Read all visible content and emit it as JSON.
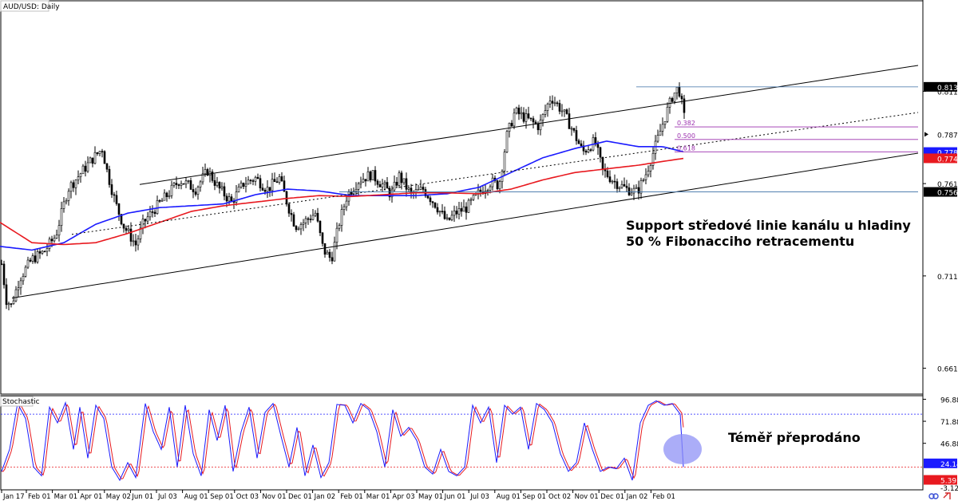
{
  "chart_data": {
    "type": "candlestick",
    "title": "AUD/USD: Daily",
    "x_tick_labels": [
      "Jan 17",
      "Feb 01",
      "Mar 01",
      "Apr 01",
      "May 02",
      "Jun 01",
      "Jul 03",
      "Aug 01",
      "Sep 01",
      "Oct 03",
      "Nov 01",
      "Dec 01",
      "Jan 02",
      "Feb 01",
      "Mar 01",
      "Apr 03",
      "May 01",
      "Jun 01",
      "Jul 03",
      "Aug 01",
      "Sep 01",
      "Oct 02",
      "Nov 01",
      "Dec 01",
      "Jan 02",
      "Feb 01"
    ],
    "price_axis": {
      "ylim": [
        0.647,
        0.86
      ],
      "tick_labels": [
        "0.8110",
        "0.7610",
        "0.7110",
        "0.6610"
      ],
      "tick_values": [
        0.811,
        0.761,
        0.711,
        0.661
      ],
      "current_labels": [
        {
          "value": 0.8134,
          "text": "0.8134",
          "color": "#000000"
        },
        {
          "value": 0.7877,
          "text": "0.7877",
          "color": "#ffffff"
        },
        {
          "value": 0.7781,
          "text": "0.7781",
          "color": "#1a1aff"
        },
        {
          "value": 0.7747,
          "text": "0.7747",
          "color": "#e8191f"
        },
        {
          "value": 0.7565,
          "text": "0.7565",
          "color": "#000000"
        }
      ]
    },
    "series": [
      {
        "name": "",
        "type": "candlestick",
        "approx_points": [
          [
            0,
            0.724
          ],
          [
            8,
            0.698
          ],
          [
            14,
            0.695
          ],
          [
            25,
            0.71
          ],
          [
            40,
            0.72
          ],
          [
            55,
            0.724
          ],
          [
            70,
            0.733
          ],
          [
            85,
            0.758
          ],
          [
            100,
            0.766
          ],
          [
            115,
            0.774
          ],
          [
            128,
            0.78
          ],
          [
            135,
            0.766
          ],
          [
            145,
            0.75
          ],
          [
            155,
            0.738
          ],
          [
            170,
            0.728
          ],
          [
            180,
            0.74
          ],
          [
            195,
            0.748
          ],
          [
            210,
            0.755
          ],
          [
            225,
            0.763
          ],
          [
            245,
            0.758
          ],
          [
            260,
            0.768
          ],
          [
            275,
            0.758
          ],
          [
            290,
            0.751
          ],
          [
            305,
            0.761
          ],
          [
            320,
            0.764
          ],
          [
            335,
            0.758
          ],
          [
            350,
            0.764
          ],
          [
            360,
            0.75
          ],
          [
            370,
            0.738
          ],
          [
            380,
            0.74
          ],
          [
            395,
            0.745
          ],
          [
            405,
            0.725
          ],
          [
            415,
            0.72
          ],
          [
            425,
            0.74
          ],
          [
            435,
            0.755
          ],
          [
            450,
            0.763
          ],
          [
            465,
            0.766
          ],
          [
            480,
            0.76
          ],
          [
            490,
            0.755
          ],
          [
            500,
            0.765
          ],
          [
            515,
            0.755
          ],
          [
            530,
            0.758
          ],
          [
            545,
            0.75
          ],
          [
            560,
            0.74
          ],
          [
            570,
            0.745
          ],
          [
            585,
            0.748
          ],
          [
            600,
            0.756
          ],
          [
            615,
            0.762
          ],
          [
            625,
            0.76
          ],
          [
            635,
            0.787
          ],
          [
            645,
            0.8
          ],
          [
            660,
            0.796
          ],
          [
            675,
            0.792
          ],
          [
            690,
            0.808
          ],
          [
            705,
            0.8
          ],
          [
            715,
            0.792
          ],
          [
            730,
            0.778
          ],
          [
            745,
            0.784
          ],
          [
            755,
            0.768
          ],
          [
            770,
            0.762
          ],
          [
            785,
            0.758
          ],
          [
            798,
            0.7565
          ],
          [
            808,
            0.765
          ],
          [
            820,
            0.78
          ],
          [
            832,
            0.796
          ],
          [
            842,
            0.808
          ],
          [
            850,
            0.8134
          ],
          [
            857,
            0.797
          ]
        ]
      },
      {
        "name": "",
        "type": "moving-average",
        "color": "#1a1aff",
        "approx_points": [
          [
            0,
            0.727
          ],
          [
            40,
            0.725
          ],
          [
            80,
            0.729
          ],
          [
            120,
            0.739
          ],
          [
            160,
            0.745
          ],
          [
            200,
            0.748
          ],
          [
            240,
            0.749
          ],
          [
            280,
            0.75
          ],
          [
            320,
            0.755
          ],
          [
            360,
            0.758
          ],
          [
            400,
            0.757
          ],
          [
            440,
            0.7545
          ],
          [
            480,
            0.7545
          ],
          [
            520,
            0.7545
          ],
          [
            560,
            0.7555
          ],
          [
            600,
            0.759
          ],
          [
            640,
            0.767
          ],
          [
            680,
            0.775
          ],
          [
            720,
            0.78
          ],
          [
            760,
            0.784
          ],
          [
            800,
            0.781
          ],
          [
            830,
            0.781
          ],
          [
            857,
            0.7781
          ]
        ]
      },
      {
        "name": "",
        "type": "moving-average",
        "color": "#e8191f",
        "approx_points": [
          [
            0,
            0.74
          ],
          [
            40,
            0.729
          ],
          [
            80,
            0.728
          ],
          [
            120,
            0.729
          ],
          [
            160,
            0.734
          ],
          [
            200,
            0.74
          ],
          [
            240,
            0.746
          ],
          [
            280,
            0.749
          ],
          [
            320,
            0.751
          ],
          [
            360,
            0.753
          ],
          [
            400,
            0.7545
          ],
          [
            440,
            0.754
          ],
          [
            480,
            0.755
          ],
          [
            520,
            0.756
          ],
          [
            560,
            0.756
          ],
          [
            600,
            0.7555
          ],
          [
            640,
            0.758
          ],
          [
            680,
            0.763
          ],
          [
            720,
            0.767
          ],
          [
            760,
            0.769
          ],
          [
            800,
            0.771
          ],
          [
            830,
            0.773
          ],
          [
            857,
            0.7747
          ]
        ]
      }
    ],
    "channel": {
      "upper": [
        [
          175,
          0.7605
        ],
        [
          1150,
          0.825
        ]
      ],
      "middle_dotted": [
        [
          90,
          0.7335
        ],
        [
          1150,
          0.7995
        ]
      ],
      "lower": [
        [
          15,
          0.699
        ],
        [
          1150,
          0.7775
        ]
      ]
    },
    "horizontal_lines": [
      {
        "value": 0.8134,
        "from_x": 797
      },
      {
        "value": 0.7565,
        "from_x": 425
      }
    ],
    "fibonacci": [
      {
        "label": "0.382",
        "value": 0.7917
      },
      {
        "label": "0.500",
        "value": 0.7849
      },
      {
        "label": "0.618",
        "value": 0.7782
      }
    ],
    "annotations": [
      "Support středové linie kanálu u hladiny",
      "50 % Fibonacciho retracementu"
    ],
    "stochastic": {
      "title": "Stochastic",
      "ylim": [
        -5,
        100
      ],
      "tick_labels": [
        "96.88",
        "71.88",
        "46.88"
      ],
      "tick_values": [
        96.88,
        71.88,
        46.88
      ],
      "current_labels": [
        {
          "value": 24.14,
          "text": "24.14",
          "color": "#1a1aff"
        },
        {
          "value": 5.39,
          "text": "5.39",
          "color": "#e8191f"
        },
        {
          "value": -3.12,
          "text": "-3.12",
          "color": "#ffffff"
        }
      ],
      "levels": [
        80,
        20
      ],
      "annotation": "Téměř přeprodáno",
      "approx_points": [
        [
          2,
          15
        ],
        [
          12,
          40
        ],
        [
          22,
          92
        ],
        [
          32,
          75
        ],
        [
          42,
          20
        ],
        [
          52,
          10
        ],
        [
          62,
          88
        ],
        [
          72,
          70
        ],
        [
          82,
          93
        ],
        [
          92,
          40
        ],
        [
          100,
          88
        ],
        [
          110,
          30
        ],
        [
          120,
          90
        ],
        [
          130,
          75
        ],
        [
          140,
          20
        ],
        [
          150,
          5
        ],
        [
          160,
          25
        ],
        [
          170,
          8
        ],
        [
          182,
          92
        ],
        [
          192,
          60
        ],
        [
          202,
          40
        ],
        [
          212,
          88
        ],
        [
          222,
          20
        ],
        [
          232,
          90
        ],
        [
          242,
          35
        ],
        [
          252,
          10
        ],
        [
          262,
          85
        ],
        [
          272,
          50
        ],
        [
          282,
          90
        ],
        [
          292,
          15
        ],
        [
          302,
          60
        ],
        [
          312,
          88
        ],
        [
          322,
          30
        ],
        [
          332,
          82
        ],
        [
          342,
          92
        ],
        [
          352,
          55
        ],
        [
          362,
          20
        ],
        [
          372,
          65
        ],
        [
          382,
          10
        ],
        [
          392,
          45
        ],
        [
          402,
          8
        ],
        [
          412,
          25
        ],
        [
          422,
          91
        ],
        [
          432,
          90
        ],
        [
          442,
          70
        ],
        [
          452,
          92
        ],
        [
          462,
          85
        ],
        [
          472,
          60
        ],
        [
          482,
          20
        ],
        [
          492,
          85
        ],
        [
          502,
          55
        ],
        [
          512,
          65
        ],
        [
          522,
          50
        ],
        [
          532,
          20
        ],
        [
          542,
          12
        ],
        [
          552,
          40
        ],
        [
          562,
          15
        ],
        [
          572,
          10
        ],
        [
          582,
          20
        ],
        [
          592,
          90
        ],
        [
          602,
          70
        ],
        [
          612,
          88
        ],
        [
          622,
          25
        ],
        [
          632,
          90
        ],
        [
          642,
          80
        ],
        [
          652,
          88
        ],
        [
          662,
          40
        ],
        [
          672,
          92
        ],
        [
          682,
          85
        ],
        [
          692,
          70
        ],
        [
          702,
          35
        ],
        [
          712,
          15
        ],
        [
          722,
          25
        ],
        [
          732,
          70
        ],
        [
          742,
          40
        ],
        [
          752,
          15
        ],
        [
          762,
          20
        ],
        [
          772,
          18
        ],
        [
          782,
          30
        ],
        [
          792,
          5
        ],
        [
          802,
          70
        ],
        [
          812,
          90
        ],
        [
          822,
          95
        ],
        [
          832,
          90
        ],
        [
          842,
          92
        ],
        [
          852,
          80
        ],
        [
          857,
          5
        ]
      ]
    },
    "watermark_icons": [
      "logo-icon",
      "link-icon"
    ]
  }
}
